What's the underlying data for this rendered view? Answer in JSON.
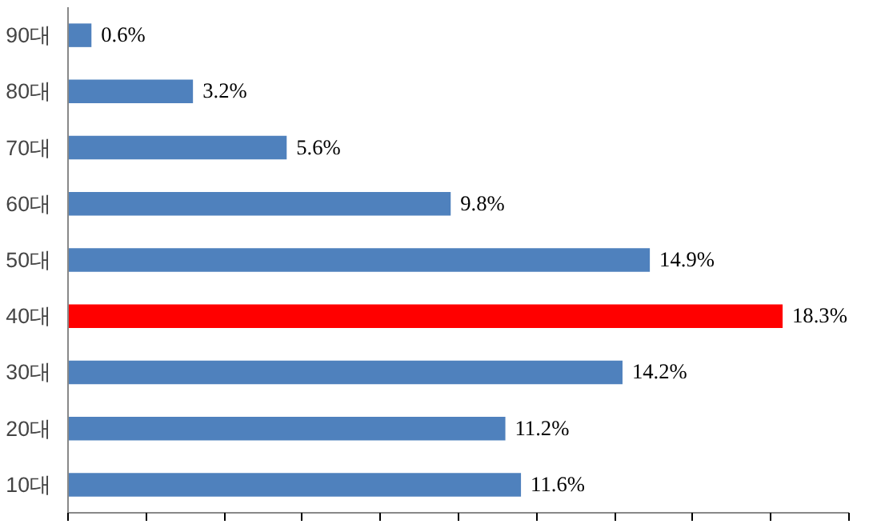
{
  "chart_data": {
    "type": "bar",
    "orientation": "horizontal",
    "categories": [
      "90대",
      "80대",
      "70대",
      "60대",
      "50대",
      "40대",
      "30대",
      "20대",
      "10대"
    ],
    "values": [
      0.6,
      3.2,
      5.6,
      9.8,
      14.9,
      18.3,
      14.2,
      11.2,
      11.6
    ],
    "colors": [
      "#4f81bd",
      "#4f81bd",
      "#4f81bd",
      "#4f81bd",
      "#4f81bd",
      "#ff0000",
      "#4f81bd",
      "#4f81bd",
      "#4f81bd"
    ],
    "value_labels": [
      "0.6%",
      "3.2%",
      "5.6%",
      "9.8%",
      "14.9%",
      "18.3%",
      "14.2%",
      "11.2%",
      "11.6%"
    ],
    "xlim": [
      0,
      20
    ],
    "xticks": [
      {
        "value": 0,
        "label": null
      },
      {
        "value": 2,
        "label": null
      },
      {
        "value": 4,
        "label": null
      },
      {
        "value": 6,
        "label": null
      },
      {
        "value": 8,
        "label": null
      },
      {
        "value": 10,
        "label": null
      },
      {
        "value": 12,
        "label": null
      },
      {
        "value": 14,
        "label": null
      },
      {
        "value": 16,
        "label": null
      },
      {
        "value": 18,
        "label": null
      },
      {
        "value": 20,
        "label": null
      }
    ],
    "tick_labels": "y",
    "grid": false
  }
}
